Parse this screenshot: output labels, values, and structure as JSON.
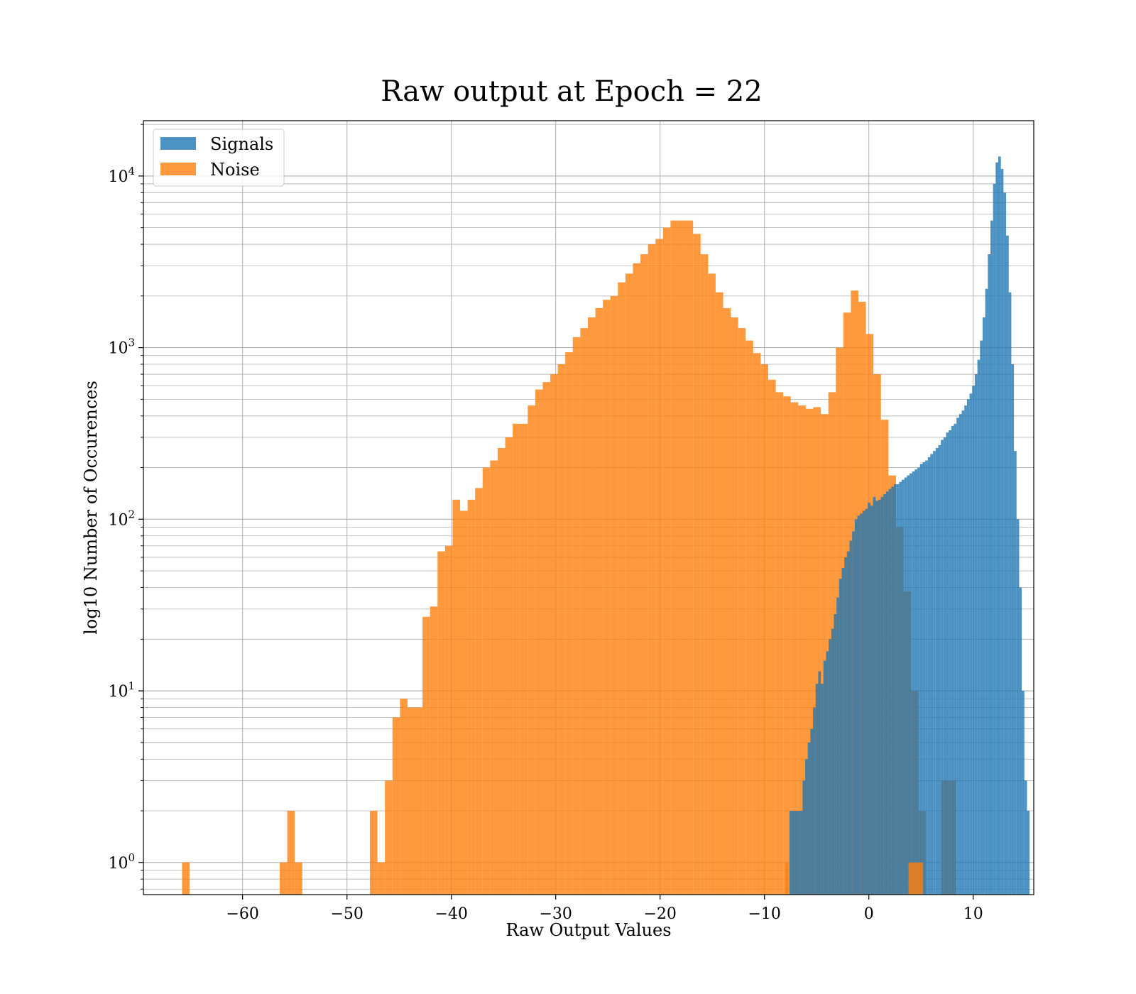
{
  "chart_data": {
    "type": "bar",
    "title": "Raw output at Epoch = 22",
    "xlabel": "Raw Output Values",
    "ylabel": "log10 Number of Occurences",
    "log_y": true,
    "xlim": [
      -69.5,
      15.8
    ],
    "ylim": [
      0.65,
      21000
    ],
    "grid": true,
    "legend_position": "top-left",
    "x_tick_values": [
      -60,
      -50,
      -40,
      -30,
      -20,
      -10,
      0,
      10
    ],
    "x_tick_labels": [
      "−60",
      "−50",
      "−40",
      "−30",
      "−20",
      "−10",
      "0",
      "10"
    ],
    "y_tick_values": [
      1,
      10,
      100,
      1000,
      10000
    ],
    "y_tick_labels": [
      {
        "base": "10",
        "exp": "0"
      },
      {
        "base": "10",
        "exp": "1"
      },
      {
        "base": "10",
        "exp": "2"
      },
      {
        "base": "10",
        "exp": "3"
      },
      {
        "base": "10",
        "exp": "4"
      }
    ],
    "series": [
      {
        "name": "Noise",
        "color": "#ff7f0e",
        "bin_start": -65.8,
        "bin_width": 0.72,
        "values": [
          1,
          0,
          0,
          0,
          0,
          0,
          0,
          0,
          0,
          0,
          0,
          0,
          0,
          1,
          2,
          1,
          0,
          0,
          0,
          0,
          0,
          0,
          0,
          0,
          0,
          2,
          1,
          3,
          7,
          9,
          8,
          8,
          27,
          31,
          65,
          70,
          130,
          112,
          130,
          152,
          200,
          220,
          260,
          300,
          360,
          360,
          460,
          570,
          630,
          700,
          800,
          940,
          1150,
          1300,
          1500,
          1700,
          1900,
          2000,
          2400,
          2700,
          3100,
          3500,
          4000,
          4300,
          5000,
          5500,
          5500,
          5500,
          4600,
          3500,
          2700,
          2100,
          1700,
          1500,
          1300,
          1100,
          930,
          800,
          650,
          550,
          520,
          480,
          460,
          440,
          450,
          410,
          550,
          1000,
          1600,
          2150,
          1850,
          1200,
          700,
          380,
          180,
          90,
          38,
          10,
          2,
          0,
          0,
          3,
          3,
          0,
          0,
          0,
          0,
          0,
          0,
          0,
          0
        ],
        "extra_bins": [
          {
            "x0": -8.0,
            "x1": -7.7,
            "value": 1
          },
          {
            "x0": 3.8,
            "x1": 5.2,
            "value": 1
          }
        ]
      },
      {
        "name": "Signals",
        "color": "#1f77b4",
        "bin_start": -7.6,
        "bin_width": 0.25,
        "values": [
          2,
          2,
          2,
          2,
          2,
          3,
          4,
          5,
          6,
          8,
          11,
          13,
          11,
          15,
          17,
          20,
          23,
          28,
          35,
          45,
          52,
          60,
          65,
          75,
          85,
          100,
          105,
          108,
          112,
          115,
          125,
          120,
          135,
          128,
          130,
          135,
          140,
          145,
          150,
          155,
          160,
          160,
          165,
          170,
          175,
          180,
          185,
          190,
          195,
          200,
          210,
          215,
          220,
          230,
          240,
          250,
          260,
          270,
          290,
          300,
          320,
          330,
          350,
          360,
          390,
          410,
          430,
          460,
          500,
          540,
          600,
          700,
          850,
          1100,
          1500,
          2200,
          3500,
          5500,
          9000,
          12000,
          13000,
          11000,
          8000,
          4500,
          2100,
          800,
          250,
          100,
          40,
          10,
          3,
          2
        ]
      }
    ]
  }
}
